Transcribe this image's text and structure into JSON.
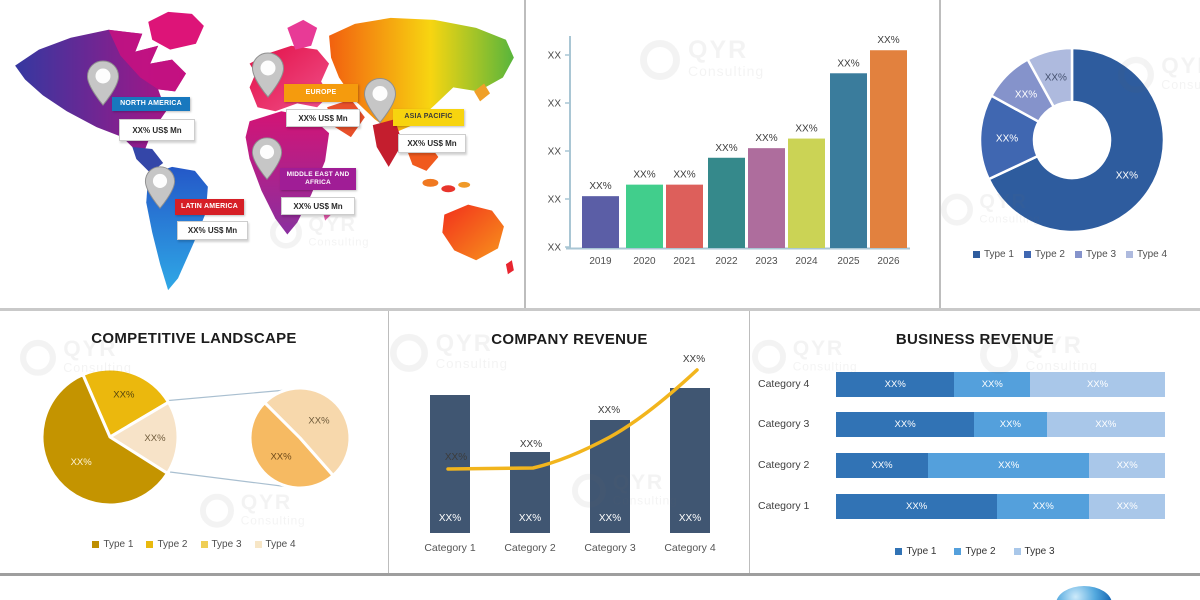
{
  "branding": {
    "watermark_line1": "QYR",
    "watermark_line2": "Consulting"
  },
  "map_panel": {
    "regions": [
      {
        "name": "NORTH AMERICA",
        "value": "XX% US$ Mn",
        "banner_color": "#1878BE",
        "text_color": "#ffffff"
      },
      {
        "name": "EUROPE",
        "value": "XX% US$ Mn",
        "banner_color": "#F59B0D",
        "text_color": "#ffffff"
      },
      {
        "name": "ASIA PACIFIC",
        "value": "XX% US$ Mn",
        "banner_color": "#F7D40F",
        "text_color": "#3a3a3a"
      },
      {
        "name": "MIDDLE EAST AND AFRICA",
        "value": "XX% US$ Mn",
        "banner_color": "#A01D96",
        "text_color": "#ffffff"
      },
      {
        "name": "LATIN AMERICA",
        "value": "XX% US$ Mn",
        "banner_color": "#D61F26",
        "text_color": "#ffffff"
      }
    ]
  },
  "chart_data": [
    {
      "id": "market-growth-bars",
      "type": "bar",
      "categories": [
        "2019",
        "2020",
        "2021",
        "2022",
        "2023",
        "2024",
        "2025",
        "2026"
      ],
      "value_labels": [
        "XX%",
        "XX%",
        "XX%",
        "XX%",
        "XX%",
        "XX%",
        "XX%",
        "XX%"
      ],
      "values_rel": [
        27,
        33,
        33,
        47,
        52,
        57,
        91,
        103
      ],
      "bar_colors": [
        "#5B5EA6",
        "#41CE8C",
        "#DD5F5B",
        "#35898B",
        "#AE6D9D",
        "#CBD355",
        "#3A7C9C",
        "#E2813E"
      ],
      "y_tick_labels": [
        "XX",
        "XX",
        "XX",
        "XX",
        "XX"
      ],
      "grid": false,
      "legend": "none"
    },
    {
      "id": "type-share-donut",
      "type": "pie",
      "donut": true,
      "slices": [
        {
          "name": "Type 1",
          "label": "XX%",
          "value_pct": 68,
          "color": "#2E5C9E",
          "label_color": "#ffffff"
        },
        {
          "name": "Type 2",
          "label": "XX%",
          "value_pct": 15,
          "color": "#4067B1",
          "label_color": "#ffffff"
        },
        {
          "name": "Type 3",
          "label": "XX%",
          "value_pct": 9,
          "color": "#8593CB",
          "label_color": "#ffffff"
        },
        {
          "name": "Type 4",
          "label": "XX%",
          "value_pct": 8,
          "color": "#AEBADE",
          "label_color": "#44506e"
        }
      ],
      "legend_position": "bottom",
      "legend": [
        "Type 1",
        "Type 2",
        "Type 3",
        "Type 4"
      ]
    },
    {
      "id": "competitive-landscape",
      "type": "pie-of-pie",
      "title": "COMPETITIVE LANDSCAPE",
      "main_slices": [
        {
          "name": "Type 2",
          "label": "XX%",
          "value_pct": 23,
          "color": "#EBB80D",
          "label_color": "#55450e"
        },
        {
          "name": "Type 3",
          "label": "XX%",
          "value_pct": 17.5,
          "color": "#F7E3C8",
          "label_color": "#6e5a3a"
        },
        {
          "name": "Type 1",
          "label": "XX%",
          "value_pct": 59.5,
          "color": "#C49400",
          "label_color": "#fdf4da"
        }
      ],
      "secondary_slices": [
        {
          "name": "Type 4",
          "label": "XX%",
          "value_pct": 51,
          "color": "#F7D8AC",
          "label_color": "#6e5a3a"
        },
        {
          "name": "Type 3",
          "label": "XX%",
          "value_pct": 49,
          "color": "#F6BA62",
          "label_color": "#6e4a1a"
        }
      ],
      "legend": [
        {
          "name": "Type 1",
          "color": "#BE8F00"
        },
        {
          "name": "Type 2",
          "color": "#E9B90E"
        },
        {
          "name": "Type 3",
          "color": "#EFCE55"
        },
        {
          "name": "Type 4",
          "color": "#F7E6C6"
        }
      ]
    },
    {
      "id": "company-revenue",
      "type": "bar-line",
      "title": "COMPANY REVENUE",
      "categories": [
        "Category 1",
        "Category 2",
        "Category 3",
        "Category 4"
      ],
      "bar_value_labels": [
        "XX%",
        "XX%",
        "XX%",
        "XX%"
      ],
      "bar_heights_rel": [
        138,
        81,
        113,
        145
      ],
      "bar_color": "#405672",
      "line_color": "#F2B51D",
      "line_value_labels": [
        "XX%",
        "XX%",
        "XX%",
        "XX%"
      ]
    },
    {
      "id": "business-revenue",
      "type": "stacked-bar-horizontal",
      "title": "BUSINESS REVENUE",
      "series_names": [
        "Type 1",
        "Type 2",
        "Type 3"
      ],
      "series_colors": [
        "#3173B5",
        "#54A0DC",
        "#A9C7E9"
      ],
      "rows": [
        {
          "category": "Category 4",
          "segments": [
            {
              "label": "XX%",
              "pct": 36
            },
            {
              "label": "XX%",
              "pct": 23
            },
            {
              "label": "XX%",
              "pct": 41
            }
          ]
        },
        {
          "category": "Category 3",
          "segments": [
            {
              "label": "XX%",
              "pct": 42
            },
            {
              "label": "XX%",
              "pct": 22
            },
            {
              "label": "XX%",
              "pct": 36
            }
          ]
        },
        {
          "category": "Category 2",
          "segments": [
            {
              "label": "XX%",
              "pct": 28
            },
            {
              "label": "XX%",
              "pct": 49
            },
            {
              "label": "XX%",
              "pct": 23
            }
          ]
        },
        {
          "category": "Category 1",
          "segments": [
            {
              "label": "XX%",
              "pct": 49
            },
            {
              "label": "XX%",
              "pct": 28
            },
            {
              "label": "XX%",
              "pct": 23
            }
          ]
        }
      ],
      "legend": [
        "Type 1",
        "Type 2",
        "Type 3"
      ]
    }
  ]
}
